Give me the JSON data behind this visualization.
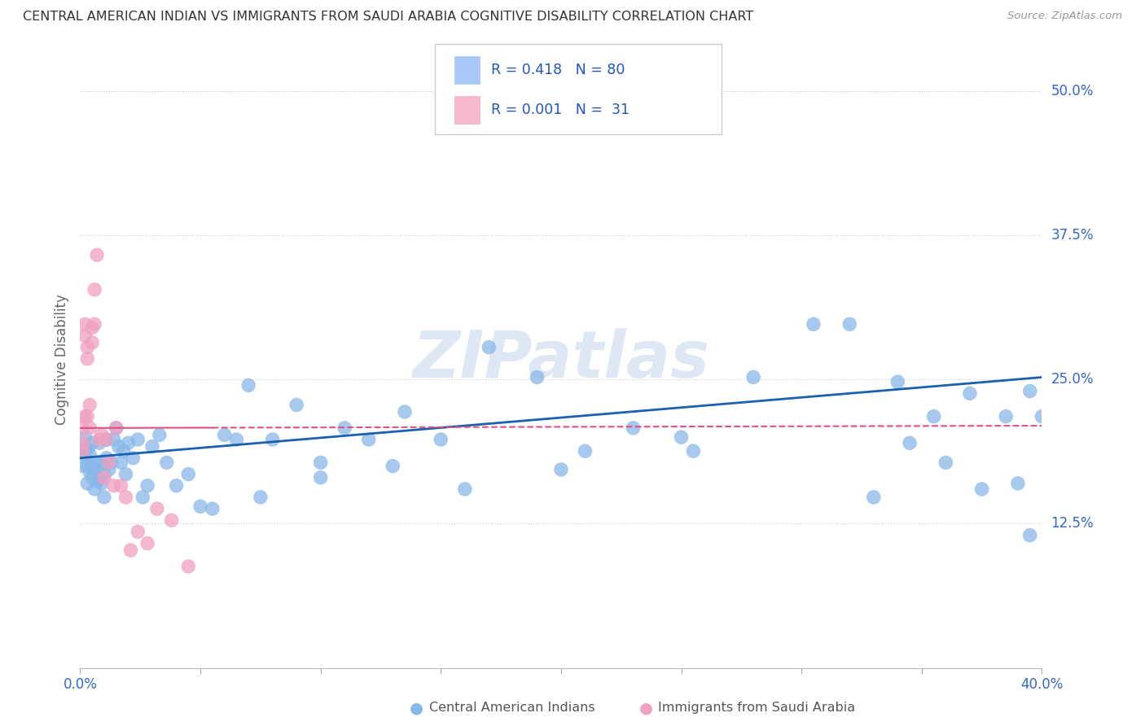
{
  "title": "CENTRAL AMERICAN INDIAN VS IMMIGRANTS FROM SAUDI ARABIA COGNITIVE DISABILITY CORRELATION CHART",
  "source": "Source: ZipAtlas.com",
  "ylabel": "Cognitive Disability",
  "right_yticks": [
    "50.0%",
    "37.5%",
    "25.0%",
    "12.5%"
  ],
  "right_ytick_vals": [
    0.5,
    0.375,
    0.25,
    0.125
  ],
  "legend_label1": "R = 0.418   N = 80",
  "legend_label2": "R = 0.001   N =  31",
  "legend_color1": "#a8c8f8",
  "legend_color2": "#f8b8cc",
  "color_blue": "#88b8e8",
  "color_pink": "#f0a0c0",
  "trendline_blue": "#1a5fb0",
  "trendline_pink": "#e05080",
  "watermark": "ZIPatlas",
  "footer_label1": "Central American Indians",
  "footer_label2": "Immigrants from Saudi Arabia",
  "blue_R": 0.418,
  "pink_R": 0.001,
  "blue_intercept": 0.182,
  "blue_slope": 0.175,
  "pink_intercept": 0.208,
  "pink_slope": 0.005,
  "blue_points_x": [
    0.001,
    0.001,
    0.002,
    0.002,
    0.003,
    0.003,
    0.003,
    0.004,
    0.004,
    0.005,
    0.005,
    0.005,
    0.006,
    0.006,
    0.007,
    0.007,
    0.008,
    0.008,
    0.009,
    0.009,
    0.01,
    0.01,
    0.011,
    0.011,
    0.012,
    0.013,
    0.014,
    0.015,
    0.016,
    0.017,
    0.018,
    0.019,
    0.02,
    0.022,
    0.024,
    0.026,
    0.028,
    0.03,
    0.033,
    0.036,
    0.04,
    0.045,
    0.05,
    0.055,
    0.06,
    0.065,
    0.07,
    0.08,
    0.09,
    0.1,
    0.11,
    0.12,
    0.135,
    0.15,
    0.17,
    0.19,
    0.21,
    0.23,
    0.255,
    0.28,
    0.305,
    0.32,
    0.34,
    0.355,
    0.37,
    0.385,
    0.395,
    0.4,
    0.395,
    0.39,
    0.375,
    0.36,
    0.345,
    0.33,
    0.25,
    0.2,
    0.16,
    0.13,
    0.1,
    0.075
  ],
  "blue_points_y": [
    0.19,
    0.175,
    0.185,
    0.2,
    0.175,
    0.19,
    0.16,
    0.17,
    0.185,
    0.165,
    0.175,
    0.195,
    0.155,
    0.172,
    0.162,
    0.178,
    0.165,
    0.195,
    0.16,
    0.178,
    0.148,
    0.168,
    0.182,
    0.198,
    0.172,
    0.178,
    0.198,
    0.208,
    0.192,
    0.178,
    0.188,
    0.168,
    0.195,
    0.182,
    0.198,
    0.148,
    0.158,
    0.192,
    0.202,
    0.178,
    0.158,
    0.168,
    0.14,
    0.138,
    0.202,
    0.198,
    0.245,
    0.198,
    0.228,
    0.178,
    0.208,
    0.198,
    0.222,
    0.198,
    0.278,
    0.252,
    0.188,
    0.208,
    0.188,
    0.252,
    0.298,
    0.298,
    0.248,
    0.218,
    0.238,
    0.218,
    0.115,
    0.218,
    0.24,
    0.16,
    0.155,
    0.178,
    0.195,
    0.148,
    0.2,
    0.172,
    0.155,
    0.175,
    0.165,
    0.148
  ],
  "pink_points_x": [
    0.001,
    0.001,
    0.001,
    0.002,
    0.002,
    0.002,
    0.003,
    0.003,
    0.003,
    0.004,
    0.004,
    0.005,
    0.005,
    0.006,
    0.006,
    0.007,
    0.008,
    0.009,
    0.01,
    0.011,
    0.012,
    0.014,
    0.015,
    0.017,
    0.019,
    0.021,
    0.024,
    0.028,
    0.032,
    0.038,
    0.045
  ],
  "pink_points_y": [
    0.195,
    0.208,
    0.188,
    0.218,
    0.288,
    0.298,
    0.278,
    0.268,
    0.218,
    0.208,
    0.228,
    0.282,
    0.295,
    0.298,
    0.328,
    0.358,
    0.198,
    0.202,
    0.165,
    0.198,
    0.178,
    0.158,
    0.208,
    0.158,
    0.148,
    0.102,
    0.118,
    0.108,
    0.138,
    0.128,
    0.088
  ]
}
